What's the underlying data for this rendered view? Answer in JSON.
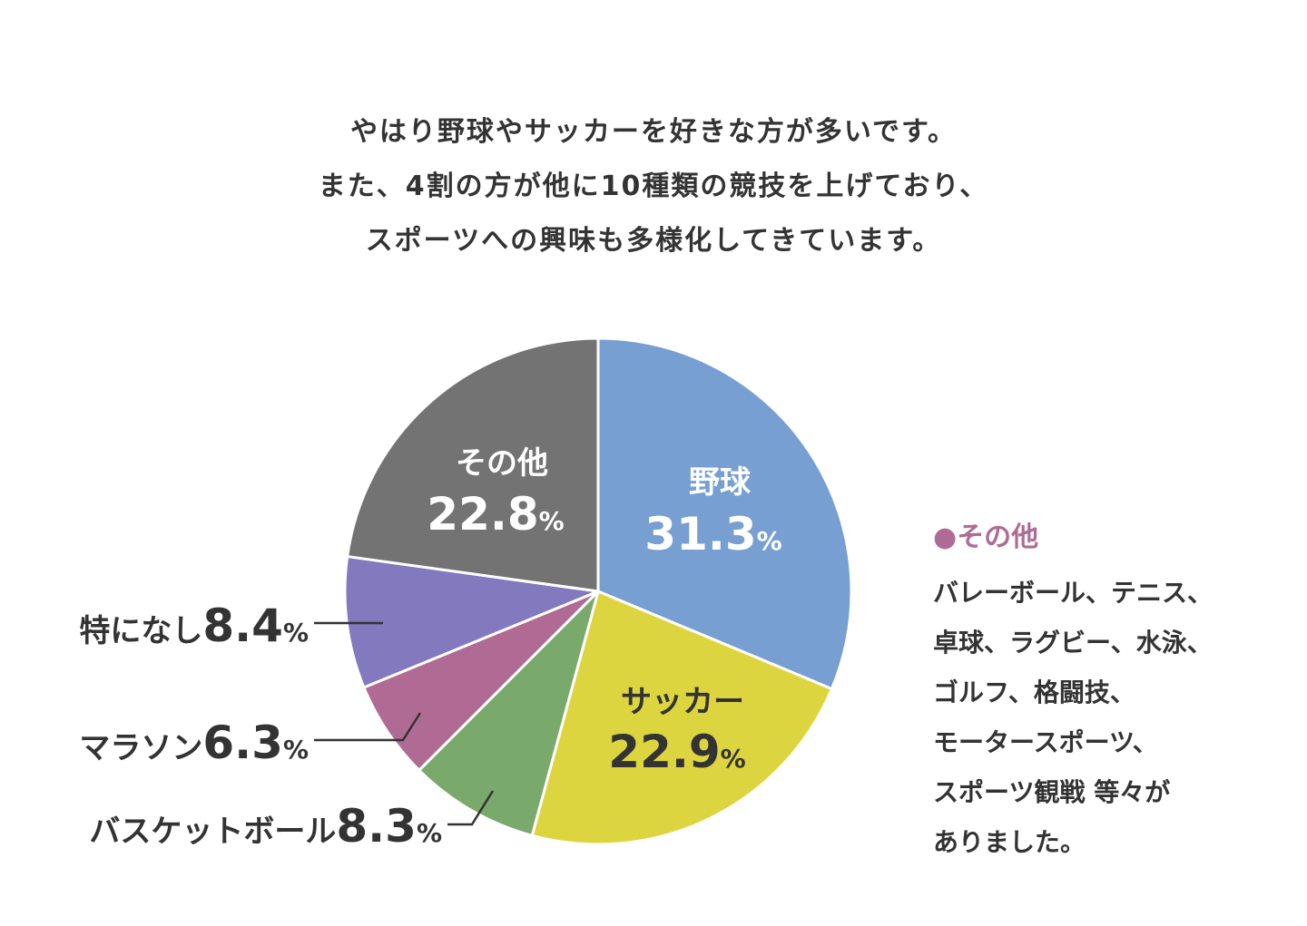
{
  "intro": [
    "やはり野球やサッカーを好きな方が多いです。",
    "また、4割の方が他に10種類の競技を上げており、",
    "スポーツへの興味も多様化してきています。"
  ],
  "chart_data": {
    "type": "pie",
    "slices": [
      {
        "label": "野球",
        "value": 31.3,
        "num": "31.3",
        "unit": "%",
        "color": "#779fd1",
        "text_color": "#ffffff"
      },
      {
        "label": "サッカー",
        "value": 22.9,
        "num": "22.9",
        "unit": "%",
        "color": "#ddd53f",
        "text_color": "#333333"
      },
      {
        "label": "バスケットボール",
        "value": 8.3,
        "num": "8.3",
        "unit": "%",
        "color": "#7aa96c",
        "text_color": "#333333"
      },
      {
        "label": "マラソン",
        "value": 6.3,
        "num": "6.3",
        "unit": "%",
        "color": "#b06b94",
        "text_color": "#333333"
      },
      {
        "label": "特になし",
        "value": 8.4,
        "num": "8.4",
        "unit": "%",
        "color": "#8279be",
        "text_color": "#333333"
      },
      {
        "label": "その他",
        "value": 22.8,
        "num": "22.8",
        "unit": "%",
        "color": "#737373",
        "text_color": "#ffffff"
      }
    ],
    "start_angle_deg": 0,
    "direction": "clockwise"
  },
  "note": {
    "marker": "●",
    "title": "その他",
    "title_color": "#b06b94",
    "lines": [
      "バレーボール、テニス、",
      "卓球、ラグビー、水泳、",
      "ゴルフ、格闘技、",
      "モータースポーツ、",
      "スポーツ観戦 等々が",
      "ありました。"
    ]
  }
}
